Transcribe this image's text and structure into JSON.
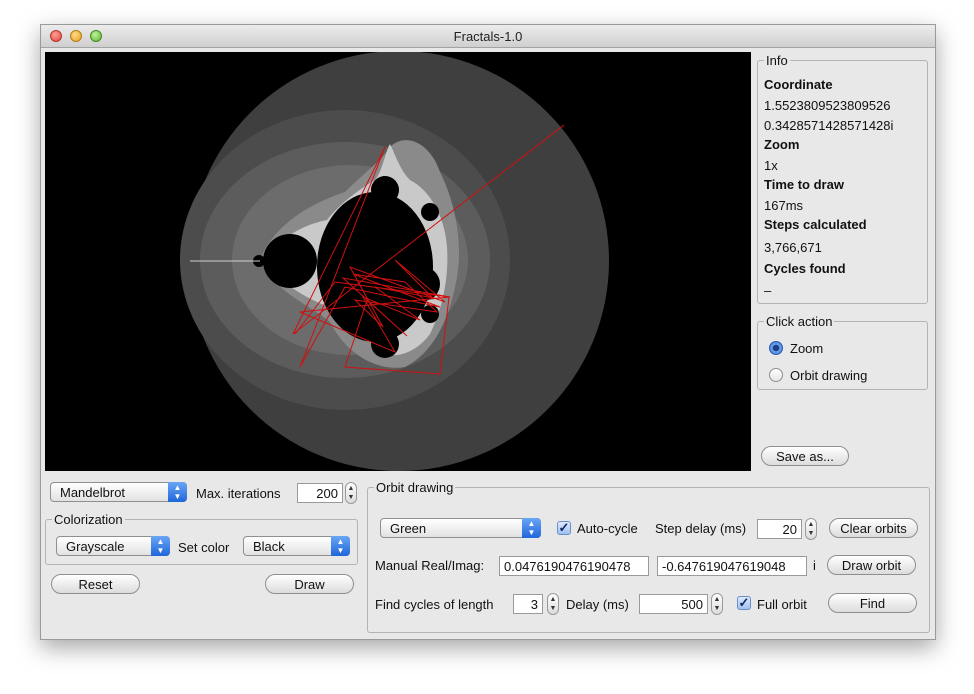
{
  "window": {
    "title": "Fractals-1.0"
  },
  "info": {
    "group_label": "Info",
    "coordinate_label": "Coordinate",
    "coordinate_real": "1.5523809523809526",
    "coordinate_imag": "0.3428571428571428i",
    "zoom_label": "Zoom",
    "zoom_value": "1x",
    "time_label": "Time to draw",
    "time_value": "167ms",
    "steps_label": "Steps calculated",
    "steps_value": "3,766,671",
    "cycles_label": "Cycles found",
    "cycles_value": "–"
  },
  "click_action": {
    "group_label": "Click action",
    "options": [
      {
        "label": "Zoom",
        "selected": true
      },
      {
        "label": "Orbit drawing",
        "selected": false
      }
    ]
  },
  "save_button": "Save as...",
  "controls": {
    "fractal_type": "Mandelbrot",
    "max_iterations_label": "Max. iterations",
    "max_iterations_value": "200",
    "colorization": {
      "group_label": "Colorization",
      "scheme": "Grayscale",
      "set_color_label": "Set color",
      "set_color": "Black"
    },
    "reset_button": "Reset",
    "draw_button": "Draw"
  },
  "orbit": {
    "group_label": "Orbit drawing",
    "color": "Green",
    "auto_cycle_label": "Auto-cycle",
    "auto_cycle_checked": true,
    "step_delay_label": "Step delay (ms)",
    "step_delay_value": "20",
    "clear_button": "Clear orbits",
    "manual_label": "Manual Real/Imag:",
    "manual_real": "0.0476190476190478",
    "manual_imag": "-0.647619047619048",
    "imag_suffix": "i",
    "draw_orbit_button": "Draw orbit",
    "find_cycles_label": "Find cycles of length",
    "cycle_length_value": "3",
    "delay_label": "Delay (ms)",
    "delay_value": "500",
    "full_orbit_label": "Full orbit",
    "full_orbit_checked": true,
    "find_button": "Find"
  },
  "colors": {
    "orbit_line": "#d01010",
    "selection": "#2f6fd6"
  },
  "icons": {
    "combo_arrows": "up-down-chevron",
    "stepper_arrows": "up-down-triangle",
    "check": "check-mark"
  }
}
